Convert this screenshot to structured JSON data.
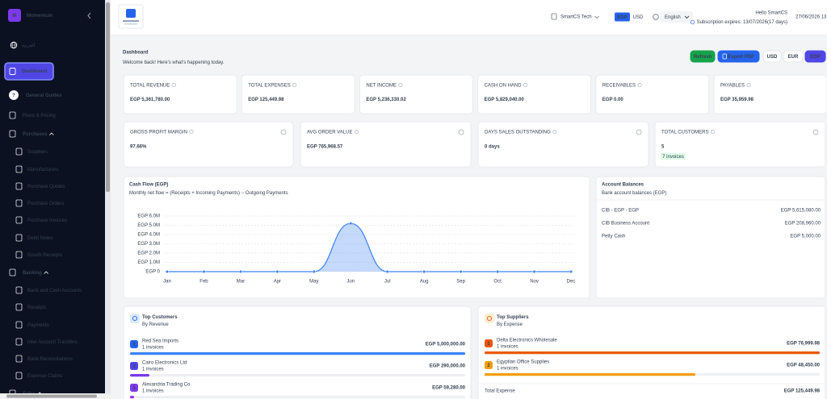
{
  "sidebar": {
    "logo_letter": "M",
    "brand": "Momentum",
    "language": "العربية",
    "active": "Dashboard",
    "items": [
      "General Guides",
      "Plans & Pricing",
      "Purchases",
      "Suppliers",
      "Manufacturers",
      "Purchase Quotes",
      "Purchase Orders",
      "Purchase Invoices",
      "Debit Notes",
      "Goods Receipts",
      "Banking",
      "Bank and Cash Accounts",
      "Receipts",
      "Payments",
      "Inter Account Transfers",
      "Bank Reconciliations",
      "Expense Claims",
      "Sales"
    ]
  },
  "header": {
    "company": "SmartCS Tech",
    "currency_toggle": [
      "EGP",
      "USD"
    ],
    "language": "English",
    "greeting": "Hello SmartCS",
    "subscription": "Subscription expires: 13/07/2026(17 days)",
    "datetime": "27/06/2026 13"
  },
  "page": {
    "title": "Dashboard",
    "subtitle": "Welcome back! Here's what's happening today.",
    "buttons": [
      "Refresh",
      "Export PDF",
      "USD",
      "EUR",
      "EGP"
    ]
  },
  "kpis": [
    {
      "label": "TOTAL REVENUE",
      "value": "EGP 5,361,780.00"
    },
    {
      "label": "TOTAL EXPENSES",
      "value": "EGP 125,449.98"
    },
    {
      "label": "NET INCOME",
      "value": "EGP 5,236,330.02"
    },
    {
      "label": "CASH ON HAND",
      "value": "EGP 5,829,040.00"
    },
    {
      "label": "RECEIVABLES",
      "value": "EGP 0.00"
    },
    {
      "label": "PAYABLES",
      "value": "EGP 35,959.98"
    }
  ],
  "metrics": [
    {
      "label": "GROSS PROFIT MARGIN",
      "value": "97.66%"
    },
    {
      "label": "AVG ORDER VALUE",
      "value": "EGP 765,968.57"
    },
    {
      "label": "DAYS SALES OUTSTANDING",
      "value": "0 days"
    },
    {
      "label": "TOTAL CUSTOMERS",
      "value": "5",
      "badge": "7 invoices"
    }
  ],
  "chart_data": {
    "type": "line",
    "title": "Cash Flow (EGP)",
    "subtitle": "Monthly net flow = (Receipts + Incoming Payments) − Outgoing Payments",
    "categories": [
      "Jan",
      "Feb",
      "Mar",
      "Apr",
      "May",
      "Jun",
      "Jul",
      "Aug",
      "Sep",
      "Oct",
      "Nov",
      "Dec"
    ],
    "series": [
      {
        "name": "Net flow",
        "color": "#3b82f6",
        "values": [
          0,
          0,
          0,
          0,
          0,
          5200000,
          0,
          0,
          0,
          0,
          0,
          0
        ]
      }
    ],
    "ylim": [
      0,
      6000000
    ],
    "yticks": [
      {
        "value": 0,
        "label": "EGP 0"
      },
      {
        "value": 1000000,
        "label": "EGP 1.0M"
      },
      {
        "value": 2000000,
        "label": "EGP 2.0M"
      },
      {
        "value": 3000000,
        "label": "EGP 3.0M"
      },
      {
        "value": 4000000,
        "label": "EGP 4.0M"
      },
      {
        "value": 5000000,
        "label": "EGP 5.0M"
      },
      {
        "value": 6000000,
        "label": "EGP 6.0M"
      }
    ],
    "grid": true
  },
  "account_balances": {
    "title": "Account Balances",
    "subtitle": "Bank account balances (EGP)",
    "rows": [
      {
        "name": "CIB - EGP - EGP",
        "amount": "EGP 5,615,080.00"
      },
      {
        "name": "CIB Business Account",
        "amount": "EGP 208,960.00"
      },
      {
        "name": "Petty Cash",
        "amount": "EGP 5,000.00"
      }
    ]
  },
  "top_customers": {
    "title": "Top Customers",
    "subtitle": "By Revenue",
    "rows": [
      {
        "rank": "1",
        "name": "Red Sea Imports",
        "count": "1 invoices",
        "amount": "EGP 5,000,000.00"
      },
      {
        "rank": "2",
        "name": "Cairo Electronics Ltd",
        "count": "1 invoices",
        "amount": "EGP 290,000.00"
      },
      {
        "rank": "3",
        "name": "Alexandria Trading Co",
        "count": "1 invoices",
        "amount": "EGP 59,280.00"
      }
    ]
  },
  "top_suppliers": {
    "title": "Top Suppliers",
    "subtitle": "By Expense",
    "rows": [
      {
        "rank": "1",
        "name": "Delta Electronics Wholesale",
        "count": "1 invoices",
        "amount": "EGP 76,999.98"
      },
      {
        "rank": "2",
        "name": "Egyptian Office Supplies",
        "count": "1 invoices",
        "amount": "EGP 48,450.00"
      }
    ],
    "total_label": "Total Expense",
    "total": "EGP 125,449.98"
  }
}
